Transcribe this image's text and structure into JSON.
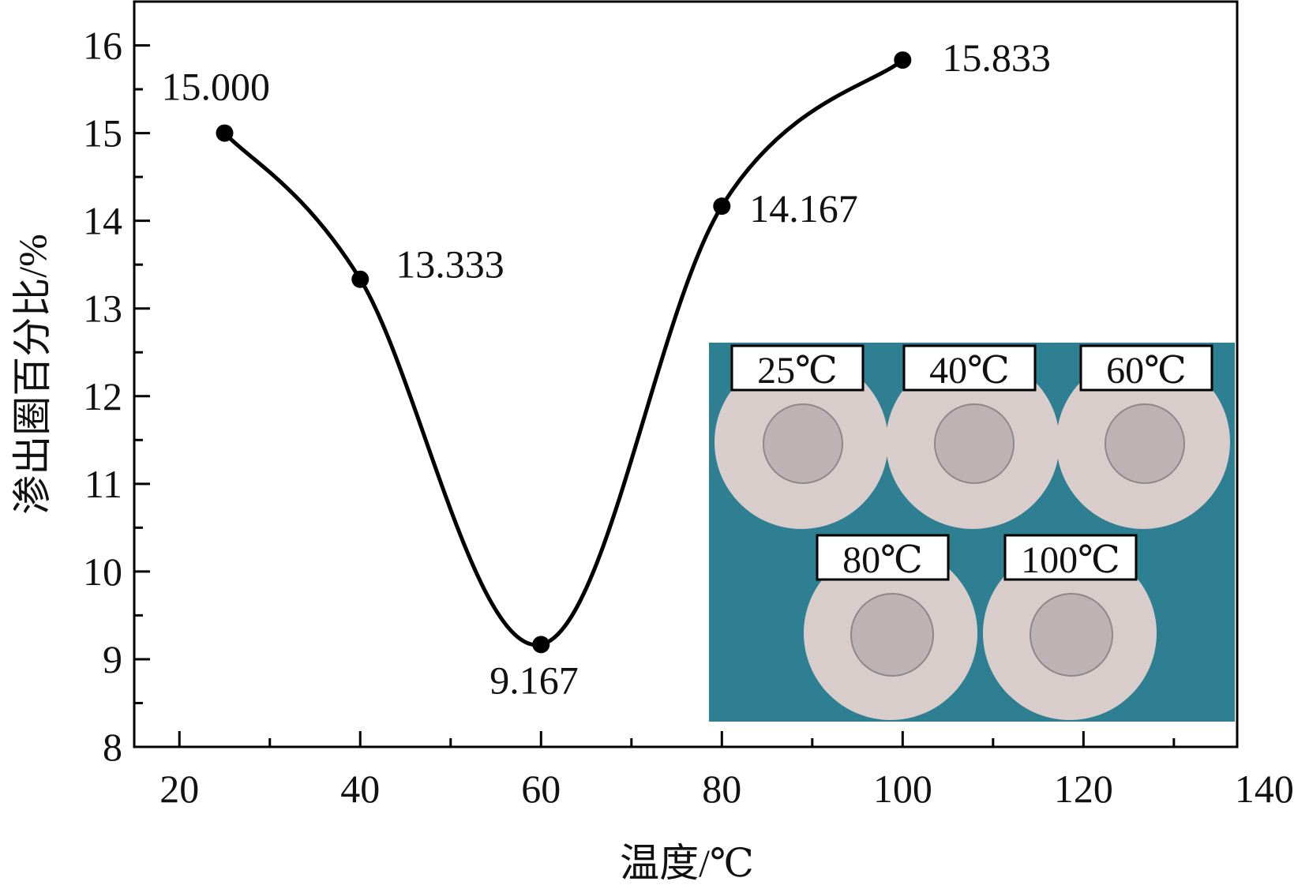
{
  "chart_data": {
    "type": "line",
    "title": "",
    "xlabel": "温度/℃",
    "ylabel": "渗出圈百分比/%",
    "xlim": [
      15,
      137
    ],
    "ylim": [
      8,
      16.5
    ],
    "xticks": [
      20,
      40,
      60,
      80,
      100,
      120,
      140
    ],
    "yticks": [
      8,
      9,
      10,
      11,
      12,
      13,
      14,
      15,
      16
    ],
    "grid": false,
    "legend": "none",
    "x": [
      25,
      40,
      60,
      80,
      100
    ],
    "series": [
      {
        "values": [
          15.0,
          13.333,
          9.167,
          14.167,
          15.833
        ],
        "data_labels": [
          "15.000",
          "13.333",
          "9.167",
          "14.167",
          "15.833"
        ],
        "color": "#000000"
      }
    ],
    "inset": {
      "background": "#2e7f92",
      "labels": [
        "25℃",
        "40℃",
        "60℃",
        "80℃",
        "100℃"
      ]
    }
  }
}
